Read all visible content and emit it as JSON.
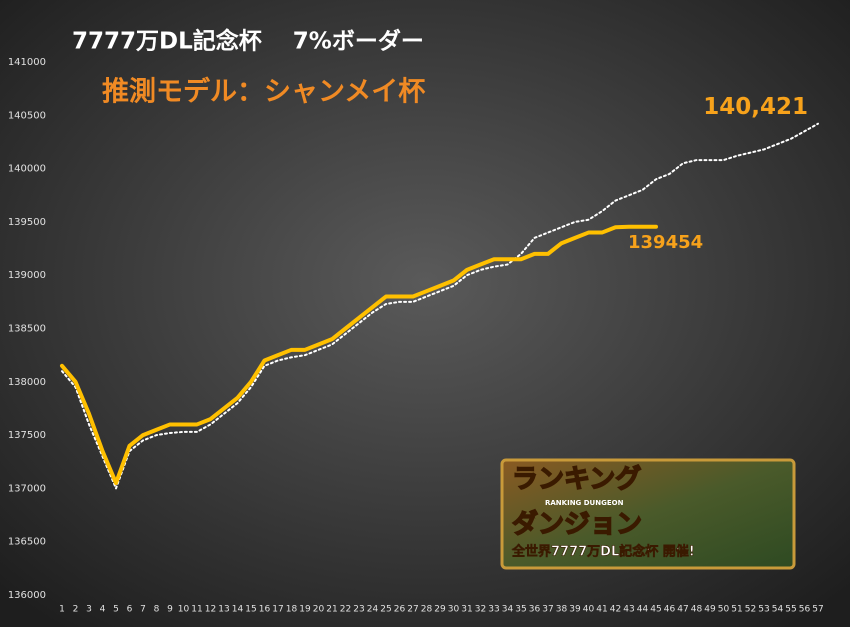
{
  "chart_data": {
    "type": "line",
    "title": "7777万DL記念杯　 7%ボーダー",
    "subtitle": "推測モデル：シャンメイ杯",
    "categories": [
      "1",
      "2",
      "3",
      "4",
      "5",
      "6",
      "7",
      "8",
      "9",
      "10",
      "11",
      "12",
      "13",
      "14",
      "15",
      "16",
      "17",
      "18",
      "19",
      "20",
      "21",
      "22",
      "23",
      "24",
      "25",
      "26",
      "27",
      "28",
      "29",
      "30",
      "31",
      "32",
      "33",
      "34",
      "35",
      "36",
      "37",
      "38",
      "39",
      "40",
      "41",
      "42",
      "43",
      "44",
      "45",
      "46",
      "47",
      "48",
      "49",
      "50",
      "51",
      "52",
      "53",
      "54",
      "55",
      "56",
      "57"
    ],
    "series": [
      {
        "name": "推測モデル",
        "color": "#ffffff",
        "style": "dotted",
        "values": [
          138100,
          137950,
          137600,
          137300,
          137000,
          137350,
          137450,
          137500,
          137520,
          137530,
          137530,
          137600,
          137700,
          137800,
          137950,
          138150,
          138200,
          138230,
          138250,
          138300,
          138350,
          138450,
          138550,
          138650,
          138730,
          138750,
          138750,
          138800,
          138850,
          138900,
          139000,
          139050,
          139080,
          139100,
          139200,
          139350,
          139400,
          139450,
          139500,
          139520,
          139600,
          139700,
          139750,
          139800,
          139900,
          139950,
          140050,
          140080,
          140080,
          140080,
          140120,
          140150,
          140180,
          140230,
          140280,
          140350,
          140421
        ],
        "value_labels": [
          null,
          null,
          null,
          null,
          null,
          null,
          null,
          null,
          null,
          null,
          null,
          null,
          null,
          null,
          null,
          null,
          null,
          null,
          null,
          null,
          null,
          null,
          null,
          null,
          null,
          null,
          null,
          null,
          null,
          null,
          null,
          null,
          null,
          null,
          null,
          null,
          null,
          null,
          null,
          null,
          null,
          null,
          null,
          null,
          null,
          null,
          null,
          null,
          null,
          null,
          null,
          null,
          null,
          null,
          null,
          null,
          "140,421"
        ]
      },
      {
        "name": "7%ボーダー",
        "color": "#ffc000",
        "style": "solid",
        "values": [
          138150,
          138000,
          137700,
          137350,
          137050,
          137400,
          137500,
          137550,
          137600,
          137600,
          137600,
          137650,
          137750,
          137850,
          138000,
          138200,
          138250,
          138300,
          138300,
          138350,
          138400,
          138500,
          138600,
          138700,
          138800,
          138800,
          138800,
          138850,
          138900,
          138950,
          139050,
          139100,
          139150,
          139150,
          139150,
          139200,
          139200,
          139300,
          139350,
          139400,
          139400,
          139450,
          139454,
          139454,
          139454,
          null,
          null,
          null,
          null,
          null,
          null,
          null,
          null,
          null,
          null,
          null,
          null
        ],
        "value_labels": [
          null,
          null,
          null,
          null,
          null,
          null,
          null,
          null,
          null,
          null,
          null,
          null,
          null,
          null,
          null,
          null,
          null,
          null,
          null,
          null,
          null,
          null,
          null,
          null,
          null,
          null,
          null,
          null,
          null,
          null,
          null,
          null,
          null,
          null,
          null,
          null,
          null,
          null,
          null,
          null,
          null,
          null,
          null,
          null,
          "139454",
          null,
          null,
          null,
          null,
          null,
          null,
          null,
          null,
          null,
          null,
          null,
          null
        ]
      }
    ],
    "ylim": [
      136000,
      141000
    ],
    "yticks": [
      136000,
      136500,
      137000,
      137500,
      138000,
      138500,
      139000,
      139500,
      140000,
      140500,
      141000
    ],
    "grid": false,
    "label_color": "#f7a21b"
  },
  "banner": {
    "title_top": "ランキング",
    "title_bottom": "ダンジョン",
    "subtitle": "RANKING DUNGEON",
    "caption": "全世界7777万DL記念杯 開催!"
  }
}
